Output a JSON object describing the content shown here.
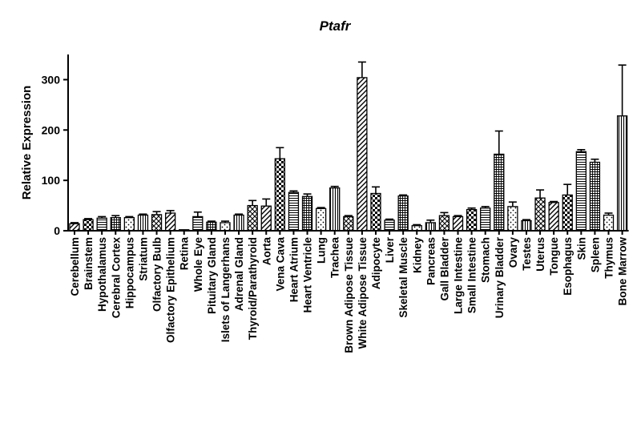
{
  "chart_data": {
    "type": "bar",
    "title": "Ptafr",
    "xlabel": "",
    "ylabel": "Relative Expression",
    "ylim": [
      0,
      350
    ],
    "yticks": [
      0,
      100,
      200,
      300
    ],
    "grid": false,
    "legend": "none",
    "bar_color": "#000000",
    "categories": [
      "Cerebellum",
      "Brainstem",
      "Hypothalamus",
      "Cerebral Cortex",
      "Hippocampus",
      "Striatum",
      "Olfactory Bulb",
      "Olfactory Epithelium",
      "Retina",
      "Whole Eye",
      "Pituitary Gland",
      "Islets of Langerhans",
      "Adrenal Gland",
      "Thyroid/Parathyroid",
      "Aorta",
      "Vena Cava",
      "Heart Atrium",
      "Heart Ventricle",
      "Lung",
      "Trachea",
      "Brown Adipose Tissue",
      "White Adipose Tissue",
      "Adipocyte",
      "Liver",
      "Skeletal Muscle",
      "Kidney",
      "Pancreas",
      "Gall Bladder",
      "Large Intestine",
      "Small Intestine",
      "Stomach",
      "Urinary Bladder",
      "Ovary",
      "Testes",
      "Uterus",
      "Tongue",
      "Esophagus",
      "Skin",
      "Spleen",
      "Thymus",
      "Bone Marrow"
    ],
    "values": [
      14,
      22,
      25,
      26,
      26,
      31,
      32,
      35,
      2,
      28,
      17,
      16,
      31,
      50,
      49,
      143,
      76,
      68,
      44,
      85,
      28,
      304,
      74,
      21,
      69,
      10,
      16,
      30,
      28,
      42,
      45,
      152,
      48,
      20,
      65,
      56,
      71,
      157,
      136,
      31,
      228
    ],
    "errors": [
      2,
      2,
      3,
      4,
      2,
      2,
      6,
      5,
      0,
      9,
      2,
      3,
      2,
      10,
      14,
      22,
      3,
      5,
      2,
      3,
      2,
      31,
      13,
      2,
      2,
      2,
      5,
      6,
      2,
      3,
      3,
      46,
      9,
      2,
      16,
      2,
      21,
      4,
      6,
      4,
      101
    ]
  }
}
